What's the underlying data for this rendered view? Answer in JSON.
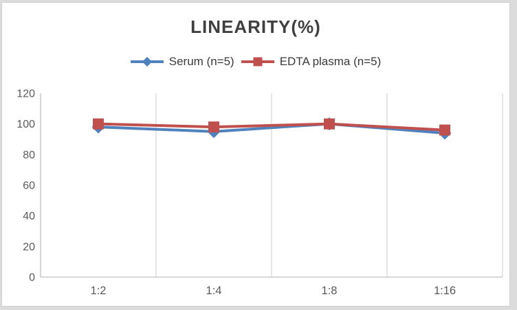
{
  "chart_data": {
    "type": "line",
    "title": "LINEARITY(%)",
    "categories": [
      "1:2",
      "1:4",
      "1:8",
      "1:16"
    ],
    "series": [
      {
        "name": "Serum (n=5)",
        "color": "#4F81BD",
        "marker": "diamond",
        "values": [
          98,
          95,
          100,
          94
        ]
      },
      {
        "name": "EDTA plasma (n=5)",
        "color": "#C0504D",
        "marker": "square",
        "values": [
          100,
          98,
          100,
          96
        ]
      }
    ],
    "ylim": [
      0,
      120
    ],
    "ytick_step": 20,
    "ytick_labels": [
      "0",
      "20",
      "40",
      "60",
      "80",
      "100",
      "120"
    ],
    "grid": "vertical-only",
    "legend_position": "top",
    "colors": {
      "axis": "#BFBFBF",
      "gridline": "#D9D9D9",
      "tick_label": "#595959",
      "title": "#3F3F3F"
    }
  }
}
